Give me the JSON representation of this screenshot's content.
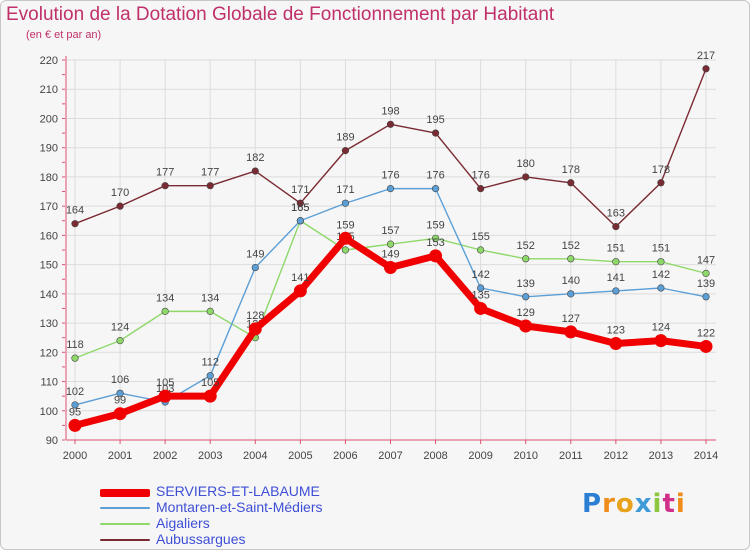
{
  "title": "Evolution de la Dotation Globale de Fonctionnement par Habitant",
  "subtitle": "(en € et par an)",
  "logo": {
    "text": "Proxiti",
    "letters": [
      "P",
      "r",
      "o",
      "x",
      "i",
      "t",
      "i"
    ],
    "letter_colors": [
      "#2a7fd4",
      "#f08c1a",
      "#e8a21c",
      "#3f9bd8",
      "#8dc63f",
      "#d12f8a",
      "#f08c1a"
    ]
  },
  "chart_data": {
    "type": "line",
    "categories": [
      "2000",
      "2001",
      "2002",
      "2003",
      "2004",
      "2005",
      "2006",
      "2007",
      "2008",
      "2009",
      "2010",
      "2011",
      "2012",
      "2013",
      "2014"
    ],
    "ylim": [
      90,
      220
    ],
    "yticks": [
      90,
      100,
      110,
      120,
      130,
      140,
      150,
      160,
      170,
      180,
      190,
      200,
      210,
      220
    ],
    "grid": true,
    "series": [
      {
        "name": "Aubussargues",
        "color": "#7a2a32",
        "values": [
          164,
          170,
          177,
          177,
          182,
          171,
          189,
          198,
          195,
          176,
          180,
          178,
          163,
          178,
          217
        ]
      },
      {
        "name": "Aigaliers",
        "color": "#8ed86a",
        "values": [
          118,
          124,
          134,
          134,
          125,
          165,
          155,
          157,
          159,
          155,
          152,
          152,
          151,
          151,
          147
        ]
      },
      {
        "name": "Montaren-et-Saint-Médiers",
        "color": "#5b9fd6",
        "values": [
          102,
          106,
          103,
          112,
          149,
          165,
          171,
          176,
          176,
          142,
          139,
          140,
          141,
          142,
          139
        ]
      },
      {
        "name": "SERVIERS-ET-LABAUME",
        "color": "#f00000",
        "values": [
          95,
          99,
          105,
          105,
          128,
          141,
          159,
          149,
          153,
          135,
          129,
          127,
          123,
          124,
          122
        ]
      }
    ],
    "legend": [
      {
        "name": "SERVIERS-ET-LABAUME",
        "color": "#f00000",
        "bold": true
      },
      {
        "name": "Montaren-et-Saint-Médiers",
        "color": "#5b9fd6",
        "bold": false
      },
      {
        "name": "Aigaliers",
        "color": "#8ed86a",
        "bold": false
      },
      {
        "name": "Aubussargues",
        "color": "#7a2a32",
        "bold": false
      }
    ],
    "legend_position": "bottom-left"
  }
}
